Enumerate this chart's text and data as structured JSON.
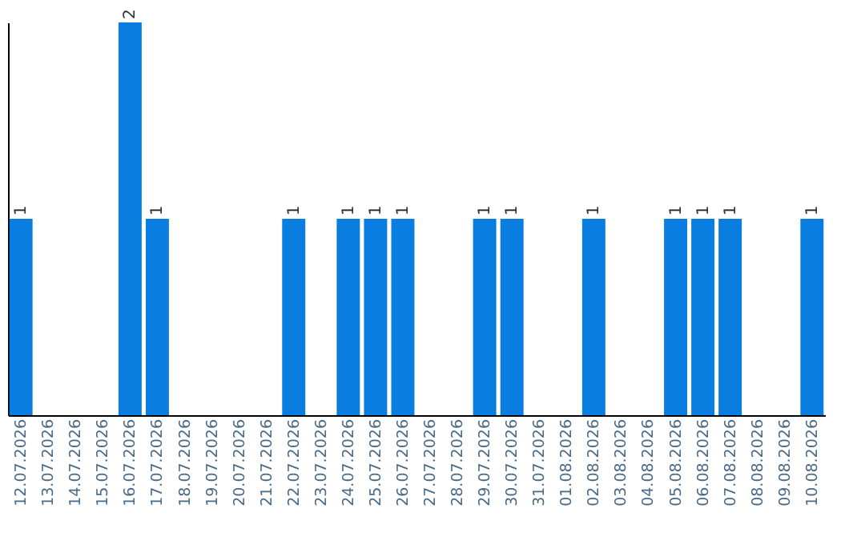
{
  "chart_data": {
    "type": "bar",
    "categories": [
      "12.07.2026",
      "13.07.2026",
      "14.07.2026",
      "15.07.2026",
      "16.07.2026",
      "17.07.2026",
      "18.07.2026",
      "19.07.2026",
      "20.07.2026",
      "21.07.2026",
      "22.07.2026",
      "23.07.2026",
      "24.07.2026",
      "25.07.2026",
      "26.07.2026",
      "27.07.2026",
      "28.07.2026",
      "29.07.2026",
      "30.07.2026",
      "31.07.2026",
      "01.08.2026",
      "02.08.2026",
      "03.08.2026",
      "04.08.2026",
      "05.08.2026",
      "06.08.2026",
      "07.08.2026",
      "08.08.2026",
      "09.08.2026",
      "10.08.2026"
    ],
    "values": [
      1,
      0,
      0,
      0,
      2,
      1,
      0,
      0,
      0,
      0,
      1,
      0,
      1,
      1,
      1,
      0,
      0,
      1,
      1,
      0,
      0,
      1,
      0,
      0,
      1,
      1,
      1,
      0,
      0,
      1
    ],
    "value_labels": [
      "1",
      null,
      null,
      null,
      "2",
      "1",
      null,
      null,
      null,
      null,
      "1",
      null,
      "1",
      "1",
      "1",
      null,
      null,
      "1",
      "1",
      null,
      null,
      "1",
      null,
      null,
      "1",
      "1",
      "1",
      null,
      null,
      "1"
    ],
    "color": "#0a7ee0",
    "tick_labels": "x",
    "grid": false
  }
}
